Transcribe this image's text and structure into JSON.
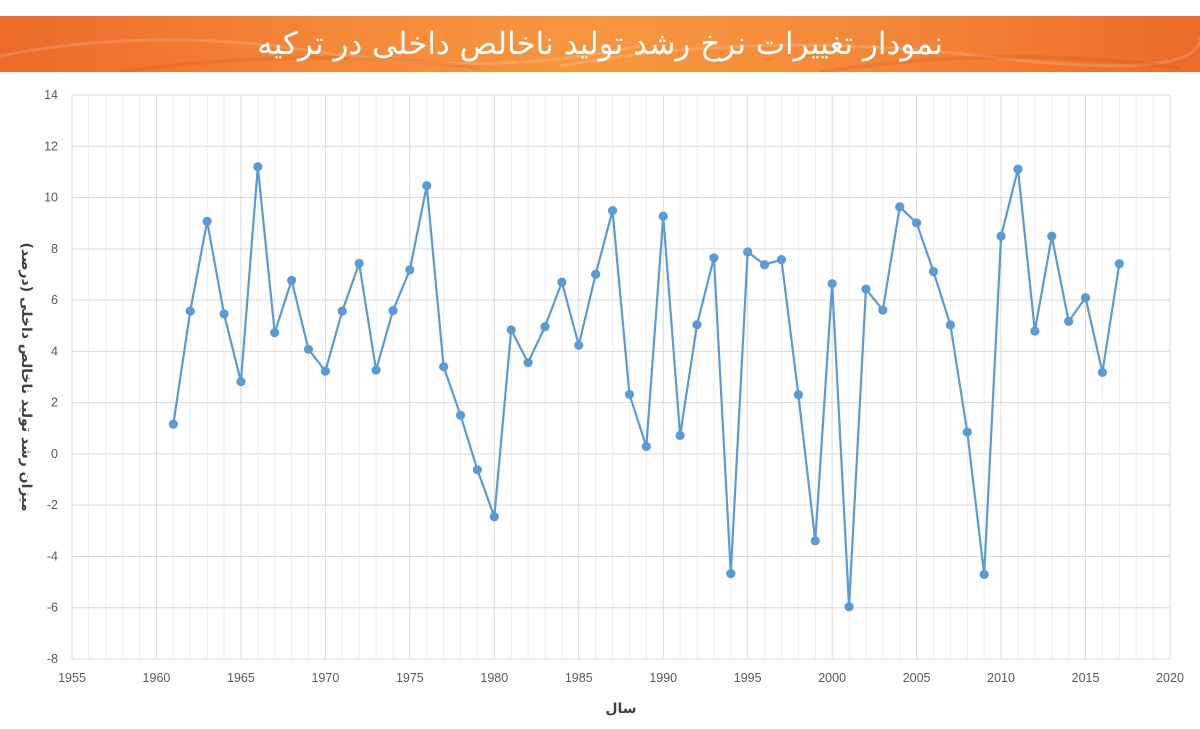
{
  "title": "نمودار تغییرات نرخ رشد تولید ناخالص داخلی در ترکیه",
  "colors": {
    "banner": "#f28133",
    "line": "#5b9bd5",
    "grid_major": "#d9d9d9",
    "grid_minor": "#eeeeee",
    "text": "#595959"
  },
  "chart_data": {
    "type": "line",
    "xlabel": "سال",
    "ylabel": "میزان رشد تولید ناخالص داخلی (درصد)",
    "xlim": [
      1955,
      2020
    ],
    "ylim": [
      -8,
      14
    ],
    "x_ticks": [
      1955,
      1960,
      1965,
      1970,
      1975,
      1980,
      1985,
      1990,
      1995,
      2000,
      2005,
      2010,
      2015,
      2020
    ],
    "y_ticks": [
      14,
      12,
      10,
      8,
      6,
      4,
      2,
      0,
      -2,
      -4,
      -6,
      -8
    ],
    "grid": true,
    "legend": "none",
    "markers": true,
    "series": [
      {
        "x": [
          1961,
          1962,
          1963,
          1964,
          1965,
          1966,
          1967,
          1968,
          1969,
          1970,
          1971,
          1972,
          1973,
          1974,
          1975,
          1976,
          1977,
          1978,
          1979,
          1980,
          1981,
          1982,
          1983,
          1984,
          1985,
          1986,
          1987,
          1988,
          1989,
          1990,
          1991,
          1992,
          1993,
          1994,
          1995,
          1996,
          1997,
          1998,
          1999,
          2000,
          2001,
          2002,
          2003,
          2004,
          2005,
          2006,
          2007,
          2008,
          2009,
          2010,
          2011,
          2012,
          2013,
          2014,
          2015,
          2016,
          2017
        ],
        "y": [
          1.16,
          5.57,
          9.07,
          5.46,
          2.82,
          11.2,
          4.73,
          6.77,
          4.08,
          3.23,
          5.57,
          7.43,
          3.27,
          5.59,
          7.18,
          10.46,
          3.4,
          1.51,
          -0.62,
          -2.45,
          4.84,
          3.56,
          4.96,
          6.7,
          4.24,
          7.01,
          9.49,
          2.32,
          0.29,
          9.27,
          0.72,
          5.04,
          7.65,
          -4.67,
          7.88,
          7.38,
          7.58,
          2.31,
          -3.39,
          6.64,
          -5.96,
          6.43,
          5.61,
          9.64,
          9.01,
          7.11,
          5.03,
          0.85,
          -4.7,
          8.49,
          11.11,
          4.79,
          8.49,
          5.17,
          6.09,
          3.18,
          7.42
        ]
      }
    ]
  }
}
